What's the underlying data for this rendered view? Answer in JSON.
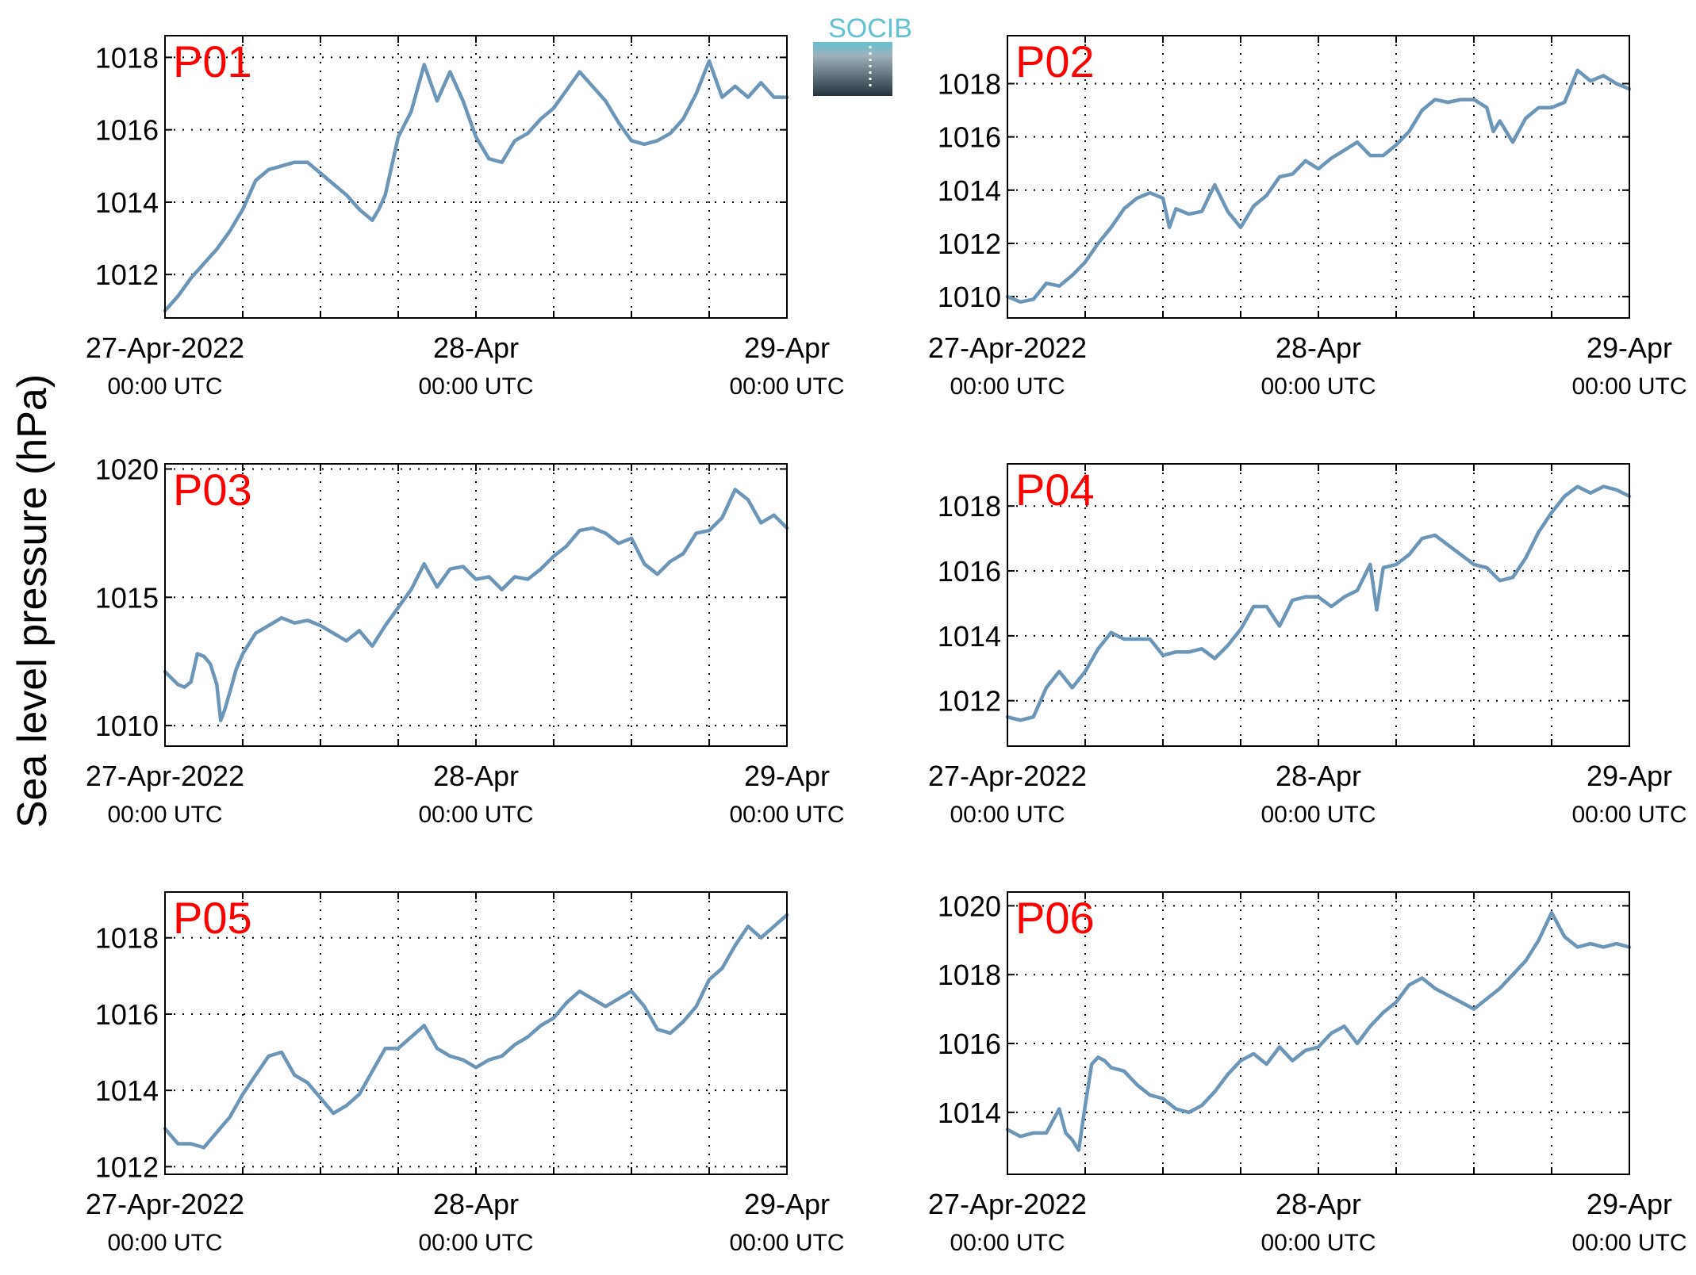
{
  "figure": {
    "ylabel": "Sea level pressure (hPa)",
    "logo_text": "SOCIB",
    "line_color": "#6b96b8",
    "label_color": "#ff0000"
  },
  "chart_data": [
    {
      "type": "line",
      "title": "P01",
      "x_unit": "hours since 27-Apr-2022 00:00 UTC",
      "x_ticks": [
        {
          "label": "27-Apr-2022",
          "sub": "00:00 UTC",
          "x": 0
        },
        {
          "label": "28-Apr",
          "sub": "00:00 UTC",
          "x": 24
        },
        {
          "label": "29-Apr",
          "sub": "00:00 UTC",
          "x": 48
        }
      ],
      "xlim": [
        0,
        48
      ],
      "ylim": [
        1010.8,
        1018.6
      ],
      "y_ticks": [
        1012,
        1014,
        1016,
        1018
      ],
      "grid": true,
      "series": [
        {
          "x": [
            0,
            1,
            2,
            3,
            4,
            5,
            6,
            7,
            8,
            9,
            10,
            11,
            12,
            13,
            14,
            15,
            16,
            16.5,
            17,
            18,
            19,
            20,
            21,
            22,
            23,
            24,
            25,
            26,
            27,
            28,
            29,
            30,
            31,
            32,
            33,
            34,
            35,
            36,
            37,
            38,
            39,
            40,
            41,
            42,
            43,
            44,
            45,
            46,
            47,
            48
          ],
          "y": [
            1011.0,
            1011.4,
            1011.9,
            1012.3,
            1012.7,
            1013.2,
            1013.8,
            1014.6,
            1014.9,
            1015.0,
            1015.1,
            1015.1,
            1014.8,
            1014.5,
            1014.2,
            1013.8,
            1013.5,
            1013.8,
            1014.2,
            1015.8,
            1016.5,
            1017.8,
            1016.8,
            1017.6,
            1016.8,
            1015.8,
            1015.2,
            1015.1,
            1015.7,
            1015.9,
            1016.3,
            1016.6,
            1017.1,
            1017.6,
            1017.2,
            1016.8,
            1016.2,
            1015.7,
            1015.6,
            1015.7,
            1015.9,
            1016.3,
            1017.0,
            1017.9,
            1016.9,
            1017.2,
            1016.9,
            1017.3,
            1016.9,
            1016.9
          ]
        }
      ]
    },
    {
      "type": "line",
      "title": "P02",
      "x_unit": "hours since 27-Apr-2022 00:00 UTC",
      "x_ticks": [
        {
          "label": "27-Apr-2022",
          "sub": "00:00 UTC",
          "x": 0
        },
        {
          "label": "28-Apr",
          "sub": "00:00 UTC",
          "x": 24
        },
        {
          "label": "29-Apr",
          "sub": "00:00 UTC",
          "x": 48
        }
      ],
      "xlim": [
        0,
        48
      ],
      "ylim": [
        1009.2,
        1019.8
      ],
      "y_ticks": [
        1010,
        1012,
        1014,
        1016,
        1018
      ],
      "grid": true,
      "series": [
        {
          "x": [
            0,
            1,
            2,
            3,
            4,
            5,
            6,
            7,
            8,
            9,
            10,
            11,
            12,
            12.5,
            13,
            14,
            15,
            16,
            17,
            18,
            19,
            20,
            21,
            22,
            23,
            24,
            25,
            26,
            27,
            28,
            29,
            30,
            31,
            32,
            33,
            34,
            35,
            36,
            37,
            37.5,
            38,
            39,
            40,
            41,
            42,
            43,
            44,
            45,
            46,
            47,
            48
          ],
          "y": [
            1010.0,
            1009.8,
            1009.9,
            1010.5,
            1010.4,
            1010.8,
            1011.3,
            1012.0,
            1012.6,
            1013.3,
            1013.7,
            1013.9,
            1013.7,
            1012.6,
            1013.3,
            1013.1,
            1013.2,
            1014.2,
            1013.2,
            1012.6,
            1013.4,
            1013.8,
            1014.5,
            1014.6,
            1015.1,
            1014.8,
            1015.2,
            1015.5,
            1015.8,
            1015.3,
            1015.3,
            1015.7,
            1016.2,
            1017.0,
            1017.4,
            1017.3,
            1017.4,
            1017.4,
            1017.1,
            1016.2,
            1016.6,
            1015.8,
            1016.7,
            1017.1,
            1017.1,
            1017.3,
            1018.5,
            1018.1,
            1018.3,
            1018.0,
            1017.8
          ]
        }
      ]
    },
    {
      "type": "line",
      "title": "P03",
      "x_unit": "hours since 27-Apr-2022 00:00 UTC",
      "x_ticks": [
        {
          "label": "27-Apr-2022",
          "sub": "00:00 UTC",
          "x": 0
        },
        {
          "label": "28-Apr",
          "sub": "00:00 UTC",
          "x": 24
        },
        {
          "label": "29-Apr",
          "sub": "00:00 UTC",
          "x": 48
        }
      ],
      "xlim": [
        0,
        48
      ],
      "ylim": [
        1009.2,
        1020.2
      ],
      "y_ticks": [
        1010,
        1015,
        1020
      ],
      "grid": true,
      "series": [
        {
          "x": [
            0,
            1,
            1.5,
            2,
            2.5,
            3,
            3.5,
            4,
            4.3,
            4.6,
            5,
            5.5,
            6,
            7,
            8,
            9,
            10,
            11,
            12,
            13,
            14,
            15,
            16,
            17,
            18,
            19,
            20,
            21,
            22,
            23,
            24,
            25,
            26,
            27,
            28,
            29,
            30,
            31,
            32,
            33,
            34,
            35,
            36,
            37,
            38,
            39,
            40,
            41,
            42,
            43,
            44,
            45,
            46,
            47,
            48
          ],
          "y": [
            1012.1,
            1011.6,
            1011.5,
            1011.7,
            1012.8,
            1012.7,
            1012.4,
            1011.6,
            1010.2,
            1010.6,
            1011.3,
            1012.2,
            1012.8,
            1013.6,
            1013.9,
            1014.2,
            1014.0,
            1014.1,
            1013.9,
            1013.6,
            1013.3,
            1013.7,
            1013.1,
            1013.9,
            1014.6,
            1015.3,
            1016.3,
            1015.4,
            1016.1,
            1016.2,
            1015.7,
            1015.8,
            1015.3,
            1015.8,
            1015.7,
            1016.1,
            1016.6,
            1017.0,
            1017.6,
            1017.7,
            1017.5,
            1017.1,
            1017.3,
            1016.3,
            1015.9,
            1016.4,
            1016.7,
            1017.5,
            1017.6,
            1018.1,
            1019.2,
            1018.8,
            1017.9,
            1018.2,
            1017.7
          ]
        }
      ]
    },
    {
      "type": "line",
      "title": "P04",
      "x_unit": "hours since 27-Apr-2022 00:00 UTC",
      "x_ticks": [
        {
          "label": "27-Apr-2022",
          "sub": "00:00 UTC",
          "x": 0
        },
        {
          "label": "28-Apr",
          "sub": "00:00 UTC",
          "x": 24
        },
        {
          "label": "29-Apr",
          "sub": "00:00 UTC",
          "x": 48
        }
      ],
      "xlim": [
        0,
        48
      ],
      "ylim": [
        1010.6,
        1019.3
      ],
      "y_ticks": [
        1012,
        1014,
        1016,
        1018
      ],
      "grid": true,
      "series": [
        {
          "x": [
            0,
            1,
            2,
            3,
            4,
            5,
            6,
            7,
            8,
            9,
            10,
            11,
            12,
            13,
            14,
            15,
            16,
            17,
            18,
            19,
            20,
            21,
            22,
            23,
            24,
            25,
            26,
            27,
            28,
            28.5,
            29,
            30,
            31,
            32,
            33,
            34,
            35,
            36,
            37,
            38,
            39,
            40,
            41,
            42,
            43,
            44,
            45,
            46,
            47,
            48
          ],
          "y": [
            1011.5,
            1011.4,
            1011.5,
            1012.4,
            1012.9,
            1012.4,
            1012.9,
            1013.6,
            1014.1,
            1013.9,
            1013.9,
            1013.9,
            1013.4,
            1013.5,
            1013.5,
            1013.6,
            1013.3,
            1013.7,
            1014.2,
            1014.9,
            1014.9,
            1014.3,
            1015.1,
            1015.2,
            1015.2,
            1014.9,
            1015.2,
            1015.4,
            1016.2,
            1014.8,
            1016.1,
            1016.2,
            1016.5,
            1017.0,
            1017.1,
            1016.8,
            1016.5,
            1016.2,
            1016.1,
            1015.7,
            1015.8,
            1016.4,
            1017.2,
            1017.8,
            1018.3,
            1018.6,
            1018.4,
            1018.6,
            1018.5,
            1018.3
          ]
        }
      ]
    },
    {
      "type": "line",
      "title": "P05",
      "x_unit": "hours since 27-Apr-2022 00:00 UTC",
      "x_ticks": [
        {
          "label": "27-Apr-2022",
          "sub": "00:00 UTC",
          "x": 0
        },
        {
          "label": "28-Apr",
          "sub": "00:00 UTC",
          "x": 24
        },
        {
          "label": "29-Apr",
          "sub": "00:00 UTC",
          "x": 48
        }
      ],
      "xlim": [
        0,
        48
      ],
      "ylim": [
        1011.8,
        1019.2
      ],
      "y_ticks": [
        1012,
        1014,
        1016,
        1018
      ],
      "grid": true,
      "series": [
        {
          "x": [
            0,
            1,
            2,
            3,
            4,
            5,
            6,
            7,
            8,
            9,
            10,
            11,
            12,
            13,
            14,
            15,
            16,
            17,
            18,
            19,
            20,
            21,
            22,
            23,
            24,
            25,
            26,
            27,
            28,
            29,
            30,
            31,
            32,
            33,
            34,
            35,
            36,
            37,
            38,
            39,
            40,
            41,
            42,
            43,
            44,
            45,
            46,
            47,
            48
          ],
          "y": [
            1013.0,
            1012.6,
            1012.6,
            1012.5,
            1012.9,
            1013.3,
            1013.9,
            1014.4,
            1014.9,
            1015.0,
            1014.4,
            1014.2,
            1013.8,
            1013.4,
            1013.6,
            1013.9,
            1014.5,
            1015.1,
            1015.1,
            1015.4,
            1015.7,
            1015.1,
            1014.9,
            1014.8,
            1014.6,
            1014.8,
            1014.9,
            1015.2,
            1015.4,
            1015.7,
            1015.9,
            1016.3,
            1016.6,
            1016.4,
            1016.2,
            1016.4,
            1016.6,
            1016.2,
            1015.6,
            1015.5,
            1015.8,
            1016.2,
            1016.9,
            1017.2,
            1017.8,
            1018.3,
            1018.0,
            1018.3,
            1018.6
          ]
        }
      ]
    },
    {
      "type": "line",
      "title": "P06",
      "x_unit": "hours since 27-Apr-2022 00:00 UTC",
      "x_ticks": [
        {
          "label": "27-Apr-2022",
          "sub": "00:00 UTC",
          "x": 0
        },
        {
          "label": "28-Apr",
          "sub": "00:00 UTC",
          "x": 24
        },
        {
          "label": "29-Apr",
          "sub": "00:00 UTC",
          "x": 48
        }
      ],
      "xlim": [
        0,
        48
      ],
      "ylim": [
        1012.2,
        1020.4
      ],
      "y_ticks": [
        1014,
        1016,
        1018,
        1020
      ],
      "grid": true,
      "series": [
        {
          "x": [
            0,
            1,
            2,
            3,
            4,
            4.5,
            5,
            5.5,
            6,
            6.5,
            7,
            7.5,
            8,
            9,
            10,
            11,
            12,
            13,
            14,
            15,
            16,
            17,
            18,
            19,
            20,
            21,
            22,
            23,
            24,
            25,
            26,
            27,
            28,
            29,
            30,
            31,
            32,
            33,
            34,
            35,
            36,
            37,
            38,
            39,
            40,
            41,
            42,
            43,
            44,
            45,
            46,
            47,
            48
          ],
          "y": [
            1013.5,
            1013.3,
            1013.4,
            1013.4,
            1014.1,
            1013.4,
            1013.2,
            1012.9,
            1014.2,
            1015.4,
            1015.6,
            1015.5,
            1015.3,
            1015.2,
            1014.8,
            1014.5,
            1014.4,
            1014.1,
            1014.0,
            1014.2,
            1014.6,
            1015.1,
            1015.5,
            1015.7,
            1015.4,
            1015.9,
            1015.5,
            1015.8,
            1015.9,
            1016.3,
            1016.5,
            1016.0,
            1016.5,
            1016.9,
            1017.2,
            1017.7,
            1017.9,
            1017.6,
            1017.4,
            1017.2,
            1017.0,
            1017.3,
            1017.6,
            1018.0,
            1018.4,
            1019.0,
            1019.8,
            1019.1,
            1018.8,
            1018.9,
            1018.8,
            1018.9,
            1018.8
          ]
        }
      ]
    }
  ]
}
